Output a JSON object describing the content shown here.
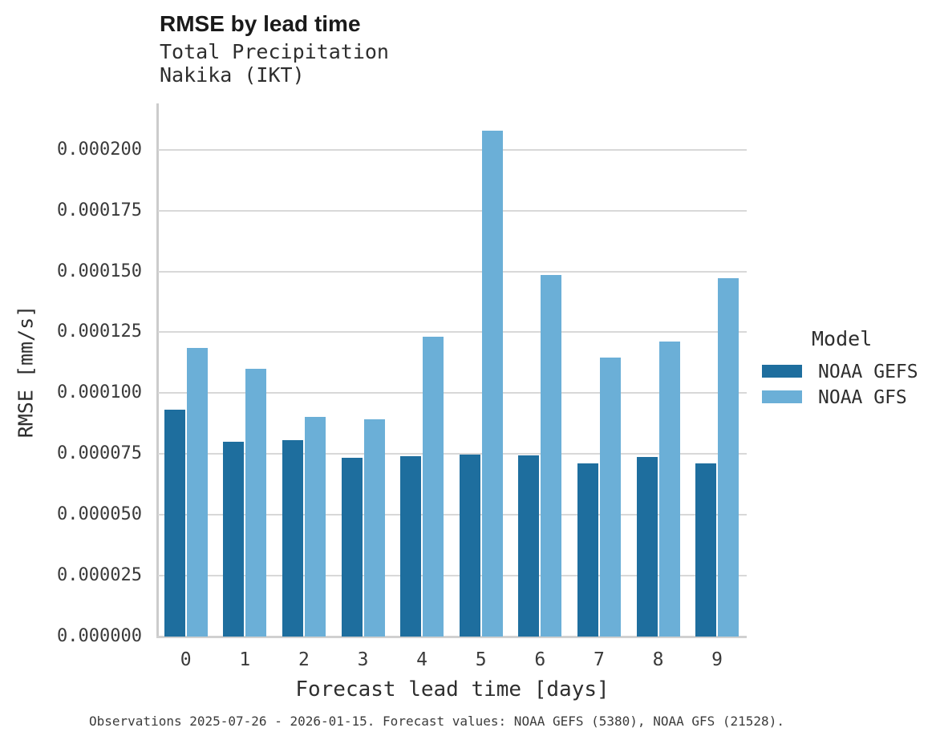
{
  "header": {
    "title": "RMSE by lead time",
    "subtitle_line1": "Total Precipitation",
    "subtitle_line2": "Nakika (IKT)"
  },
  "chart_data": {
    "type": "bar",
    "grouped": true,
    "title": "RMSE by lead time",
    "subtitle": [
      "Total Precipitation",
      "Nakika (IKT)"
    ],
    "categories": [
      "0",
      "1",
      "2",
      "3",
      "4",
      "5",
      "6",
      "7",
      "8",
      "9"
    ],
    "series": [
      {
        "name": "NOAA GEFS",
        "color": "#1e6e9e",
        "values": [
          9.33e-05,
          8e-05,
          8.06e-05,
          7.35e-05,
          7.4e-05,
          7.47e-05,
          7.43e-05,
          7.12e-05,
          7.37e-05,
          7.11e-05
        ]
      },
      {
        "name": "NOAA GFS",
        "color": "#6bafd7",
        "values": [
          0.0001185,
          0.00011,
          9.03e-05,
          8.94e-05,
          0.0001231,
          0.0002077,
          0.0001484,
          0.0001146,
          0.0001211,
          0.0001472
        ]
      }
    ],
    "xlabel": "Forecast lead time [days]",
    "ylabel": "RMSE [mm/s]",
    "ylim": [
      0,
      0.000219
    ],
    "yticks": [
      0.0,
      2.5e-05,
      5e-05,
      7.5e-05,
      0.0001,
      0.000125,
      0.00015,
      0.000175,
      0.0002
    ],
    "ytick_decimals": 6,
    "grid": "horizontal",
    "legend_title": "Model",
    "legend_position": "right"
  },
  "colors": {
    "series_dark": "#1e6e9e",
    "series_light": "#6bafd7",
    "gridline": "#d8d8d8",
    "axis": "#cccccc",
    "text": "#2e2e2e"
  },
  "footer": {
    "caption": "Observations 2025-07-26 - 2026-01-15. Forecast values: NOAA GEFS (5380), NOAA GFS (21528)."
  }
}
